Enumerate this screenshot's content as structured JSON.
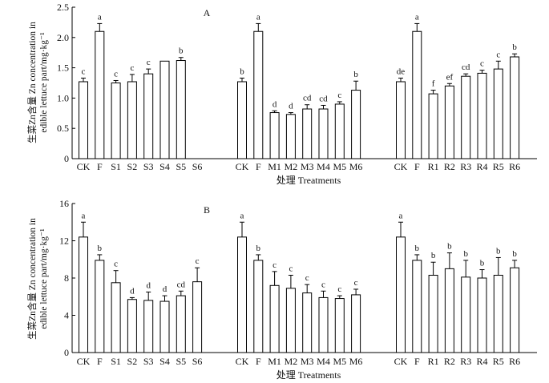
{
  "chart_data": [
    {
      "type": "bar",
      "panel_label": "A",
      "ylabel_lines": [
        "生菜Zn含量 Zn concentration in",
        "edible lettuce part/mg·kg⁻¹"
      ],
      "xlabel": "处理 Treatments",
      "ylim": [
        0,
        2.5
      ],
      "yticks": [
        "0",
        "0.5",
        "1.0",
        "1.5",
        "2.0",
        "2.5"
      ],
      "grid": false,
      "groups": [
        {
          "categories": [
            "CK",
            "F",
            "S1",
            "S2",
            "S3",
            "S4",
            "S5",
            "S6"
          ],
          "values": [
            1.27,
            2.1,
            1.25,
            1.27,
            1.4,
            1.61,
            1.62,
            null
          ],
          "errors": [
            0.06,
            0.13,
            0.04,
            0.12,
            0.08,
            0,
            0.05,
            null
          ],
          "labels": [
            "c",
            "a",
            "c",
            "c",
            "c",
            "",
            "b",
            ""
          ]
        },
        {
          "categories": [
            "CK",
            "F",
            "M1",
            "M2",
            "M3",
            "M4",
            "M5",
            "M6"
          ],
          "values": [
            1.27,
            2.1,
            0.76,
            0.73,
            0.82,
            0.82,
            0.9,
            1.13
          ],
          "errors": [
            0.06,
            0.13,
            0.03,
            0.03,
            0.07,
            0.06,
            0.04,
            0.15
          ],
          "labels": [
            "b",
            "a",
            "d",
            "d",
            "cd",
            "cd",
            "c",
            "b"
          ]
        },
        {
          "categories": [
            "CK",
            "F",
            "R1",
            "R2",
            "R3",
            "R4",
            "R5",
            "R6"
          ],
          "values": [
            1.27,
            2.1,
            1.07,
            1.2,
            1.36,
            1.41,
            1.48,
            1.68
          ],
          "errors": [
            0.06,
            0.13,
            0.06,
            0.04,
            0.04,
            0.05,
            0.13,
            0.05
          ],
          "labels": [
            "de",
            "a",
            "f",
            "ef",
            "cd",
            "c",
            "c",
            "b"
          ]
        }
      ]
    },
    {
      "type": "bar",
      "panel_label": "B",
      "ylabel_lines": [
        "生菜Zn含量 Zn concentration in",
        "edible lettuce part/mg·kg⁻¹"
      ],
      "xlabel": "处理 Treatments",
      "ylim": [
        0,
        16
      ],
      "yticks": [
        "0",
        "4",
        "8",
        "12",
        "16"
      ],
      "grid": false,
      "groups": [
        {
          "categories": [
            "CK",
            "F",
            "S1",
            "S2",
            "S3",
            "S4",
            "S5",
            "S6"
          ],
          "values": [
            12.4,
            9.9,
            7.5,
            5.7,
            5.6,
            5.5,
            6.1,
            7.6
          ],
          "errors": [
            1.6,
            0.6,
            1.3,
            0.2,
            0.9,
            0.6,
            0.5,
            1.5
          ],
          "labels": [
            "a",
            "b",
            "c",
            "d",
            "d",
            "d",
            "cd",
            "c"
          ]
        },
        {
          "categories": [
            "CK",
            "F",
            "M1",
            "M2",
            "M3",
            "M4",
            "M5",
            "M6"
          ],
          "values": [
            12.4,
            9.9,
            7.2,
            6.9,
            6.4,
            5.9,
            5.8,
            6.2
          ],
          "errors": [
            1.6,
            0.6,
            1.5,
            1.4,
            0.9,
            0.7,
            0.3,
            0.6
          ],
          "labels": [
            "a",
            "b",
            "c",
            "c",
            "c",
            "c",
            "c",
            "c"
          ]
        },
        {
          "categories": [
            "CK",
            "F",
            "R1",
            "R2",
            "R3",
            "R4",
            "R5",
            "R6"
          ],
          "values": [
            12.4,
            9.9,
            8.3,
            9.0,
            8.1,
            8.0,
            8.3,
            9.1
          ],
          "errors": [
            1.6,
            0.6,
            1.4,
            1.7,
            1.8,
            0.9,
            1.9,
            0.8
          ],
          "labels": [
            "a",
            "b",
            "b",
            "b",
            "b",
            "b",
            "b",
            "b"
          ]
        }
      ]
    }
  ]
}
